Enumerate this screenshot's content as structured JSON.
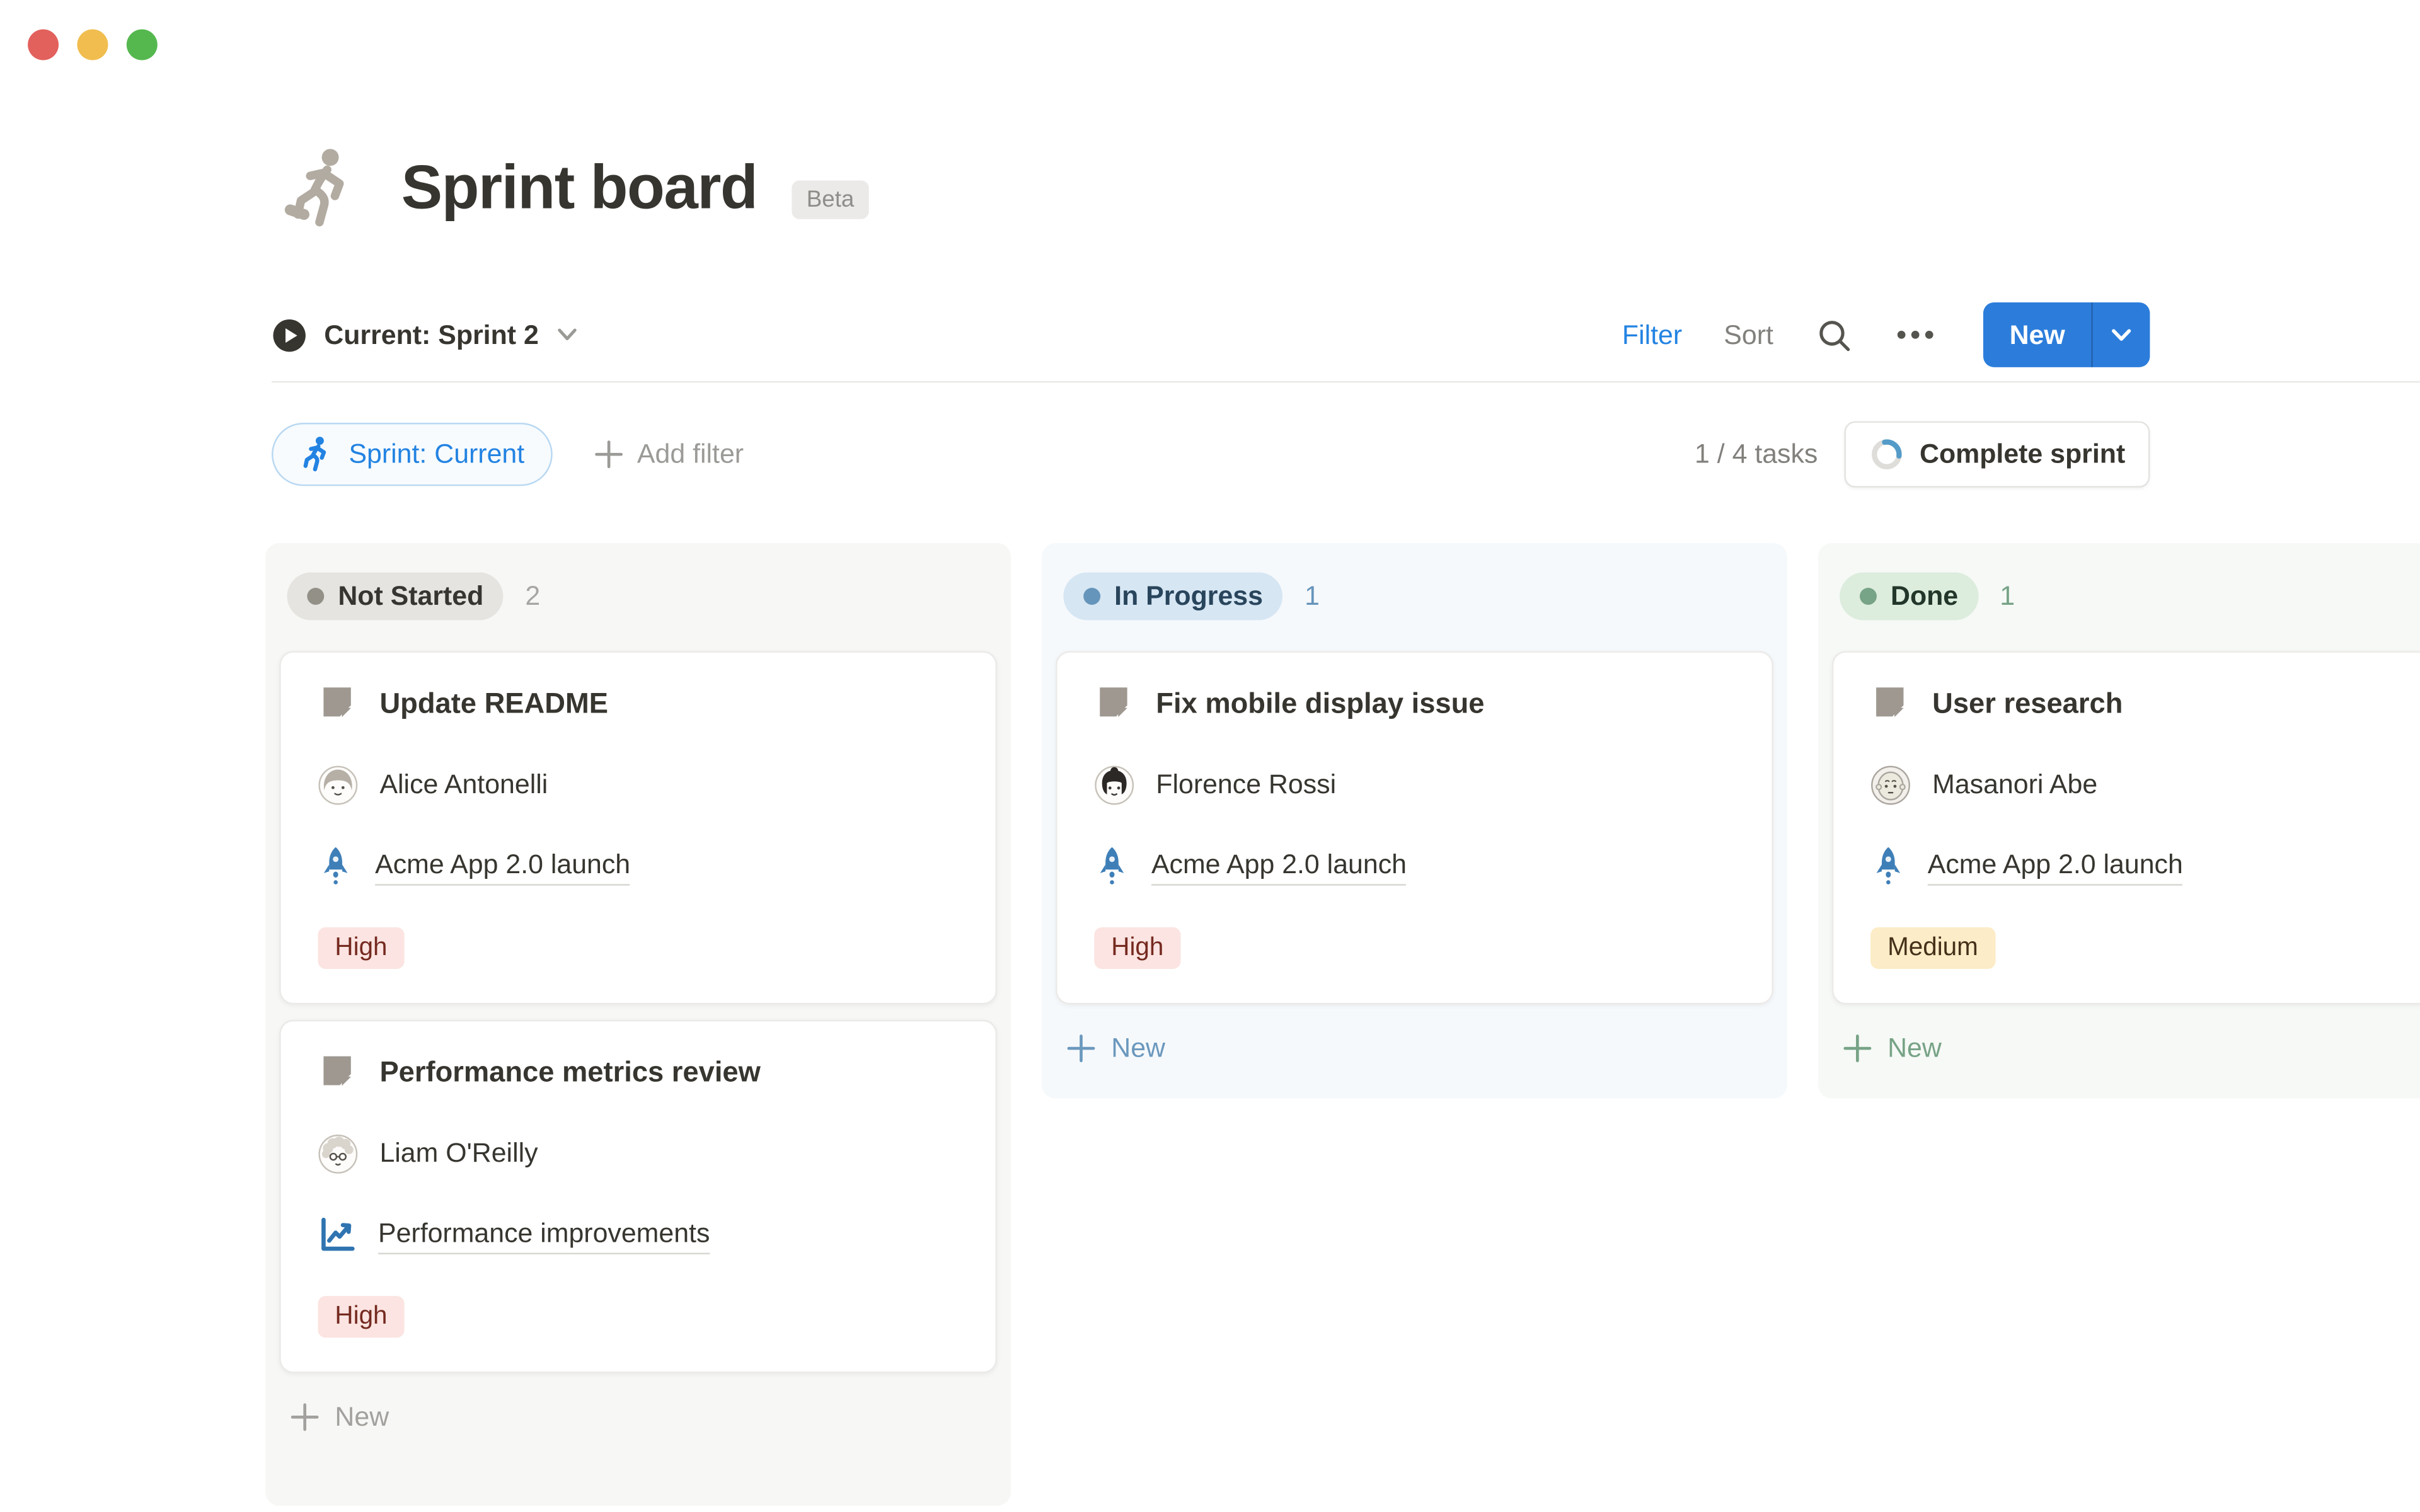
{
  "header": {
    "title": "Sprint board",
    "badge": "Beta",
    "icon": "runner-icon"
  },
  "toolbar": {
    "view_label": "Current: Sprint 2",
    "filter_label": "Filter",
    "sort_label": "Sort",
    "new_label": "New",
    "icons": [
      "play-circle-icon",
      "chevron-down-icon",
      "search-icon",
      "ellipsis-icon"
    ]
  },
  "filter_bar": {
    "sprint_chip": "Sprint: Current",
    "sprint_chip_icon": "runner-icon",
    "add_filter_label": "Add filter",
    "tasks_summary": "1 / 4 tasks",
    "complete_sprint_label": "Complete sprint",
    "complete_sprint_icon": "progress-ring-icon"
  },
  "board": {
    "columns": [
      {
        "status": "Not Started",
        "count": "2",
        "color_key": "gray",
        "new_label": "New",
        "cards": [
          {
            "title": "Update README",
            "title_icon": "page-icon",
            "assignee": "Alice Antonelli",
            "avatar": "alice-avatar",
            "project": "Acme App 2.0 launch",
            "project_icon": "rocket-icon",
            "priority": "High",
            "priority_color": "red"
          },
          {
            "title": "Performance metrics review",
            "title_icon": "page-icon",
            "assignee": "Liam O'Reilly",
            "avatar": "liam-avatar",
            "project": "Performance improvements",
            "project_icon": "chart-icon",
            "priority": "High",
            "priority_color": "red"
          }
        ]
      },
      {
        "status": "In Progress",
        "count": "1",
        "color_key": "blue",
        "new_label": "New",
        "cards": [
          {
            "title": "Fix mobile display issue",
            "title_icon": "page-icon",
            "assignee": "Florence Rossi",
            "avatar": "florence-avatar",
            "project": "Acme App 2.0 launch",
            "project_icon": "rocket-icon",
            "priority": "High",
            "priority_color": "red"
          }
        ]
      },
      {
        "status": "Done",
        "count": "1",
        "color_key": "green",
        "new_label": "New",
        "cards": [
          {
            "title": "User research",
            "title_icon": "page-icon",
            "assignee": "Masanori Abe",
            "avatar": "masanori-avatar",
            "project": "Acme App 2.0 launch",
            "project_icon": "rocket-icon",
            "priority": "Medium",
            "priority_color": "yellow"
          }
        ]
      }
    ]
  },
  "colors": {
    "accent_blue": "#2383e2",
    "new_button_bg": "#2c7ddb",
    "text_dark": "#37352f",
    "text_gray": "#82807c",
    "text_light_gray": "#9b9a97",
    "traffic_lights": [
      "#e2615d",
      "#f0bd4e",
      "#55b84f"
    ],
    "status": {
      "gray": {
        "col_bg": "#f7f7f5",
        "pill_bg": "#e5e4e1",
        "dot": "#929087",
        "text": "#373530",
        "count": "#a8a6a3",
        "new": "#a3a19e"
      },
      "blue": {
        "col_bg": "#f6f9fc",
        "pill_bg": "#d6e6f3",
        "dot": "#6695bb",
        "text": "#29455c",
        "count": "#6695bb",
        "new": "#6b98bd"
      },
      "green": {
        "col_bg": "#f6f9f6",
        "pill_bg": "#dcecdd",
        "dot": "#77a386",
        "text": "#22372a",
        "count": "#77a386",
        "new": "#77a386"
      }
    },
    "priority": {
      "red": {
        "bg": "#fbe4e1",
        "text": "#752a20"
      },
      "yellow": {
        "bg": "#fcecc7",
        "text": "#45301a"
      }
    }
  }
}
